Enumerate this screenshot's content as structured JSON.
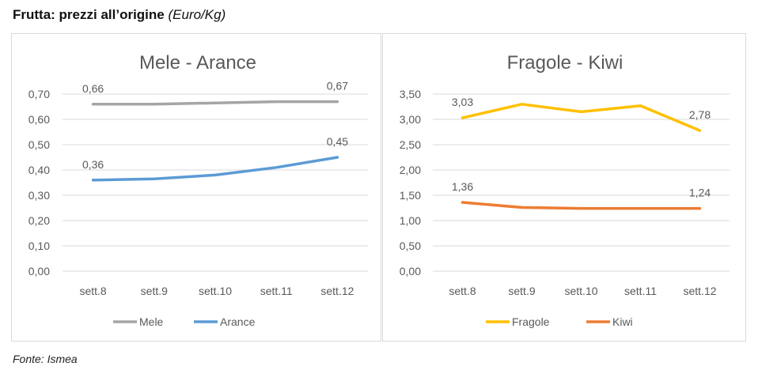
{
  "heading": {
    "title": "Frutta: prezzi all’origine",
    "unit": "(Euro/Kg)"
  },
  "source": "Fonte: Ismea",
  "colors": {
    "mele": "#a5a5a5",
    "arance": "#5b9bd5",
    "fragole": "#ffc000",
    "kiwi": "#ed7d31",
    "grid": "#d9d9d9",
    "text": "#595959"
  },
  "chart_data": [
    {
      "type": "line",
      "title": "Mele - Arance",
      "categories": [
        "sett.8",
        "sett.9",
        "sett.10",
        "sett.11",
        "sett.12"
      ],
      "ylim": [
        0,
        0.7
      ],
      "yticks": [
        "0,00",
        "0,10",
        "0,20",
        "0,30",
        "0,40",
        "0,50",
        "0,60",
        "0,70"
      ],
      "ytick_values": [
        0,
        0.1,
        0.2,
        0.3,
        0.4,
        0.5,
        0.6,
        0.7
      ],
      "grid": true,
      "legend": "bottom",
      "series": [
        {
          "name": "Mele",
          "color": "#a5a5a5",
          "values": [
            0.66,
            0.66,
            0.665,
            0.67,
            0.67
          ],
          "labels": [
            {
              "index": 0,
              "text": "0,66"
            },
            {
              "index": 4,
              "text": "0,67"
            }
          ]
        },
        {
          "name": "Arance",
          "color": "#5b9bd5",
          "values": [
            0.36,
            0.365,
            0.38,
            0.41,
            0.45
          ],
          "labels": [
            {
              "index": 0,
              "text": "0,36"
            },
            {
              "index": 4,
              "text": "0,45"
            }
          ]
        }
      ]
    },
    {
      "type": "line",
      "title": "Fragole - Kiwi",
      "categories": [
        "sett.8",
        "sett.9",
        "sett.10",
        "sett.11",
        "sett.12"
      ],
      "ylim": [
        0,
        3.5
      ],
      "yticks": [
        "0,00",
        "0,50",
        "1,00",
        "1,50",
        "2,00",
        "2,50",
        "3,00",
        "3,50"
      ],
      "ytick_values": [
        0,
        0.5,
        1.0,
        1.5,
        2.0,
        2.5,
        3.0,
        3.5
      ],
      "grid": true,
      "legend": "bottom",
      "series": [
        {
          "name": "Fragole",
          "color": "#ffc000",
          "values": [
            3.03,
            3.3,
            3.15,
            3.27,
            2.78
          ],
          "labels": [
            {
              "index": 0,
              "text": "3,03"
            },
            {
              "index": 4,
              "text": "2,78"
            }
          ]
        },
        {
          "name": "Kiwi",
          "color": "#ed7d31",
          "values": [
            1.36,
            1.26,
            1.24,
            1.24,
            1.24
          ],
          "labels": [
            {
              "index": 0,
              "text": "1,36"
            },
            {
              "index": 4,
              "text": "1,24"
            }
          ]
        }
      ]
    }
  ]
}
